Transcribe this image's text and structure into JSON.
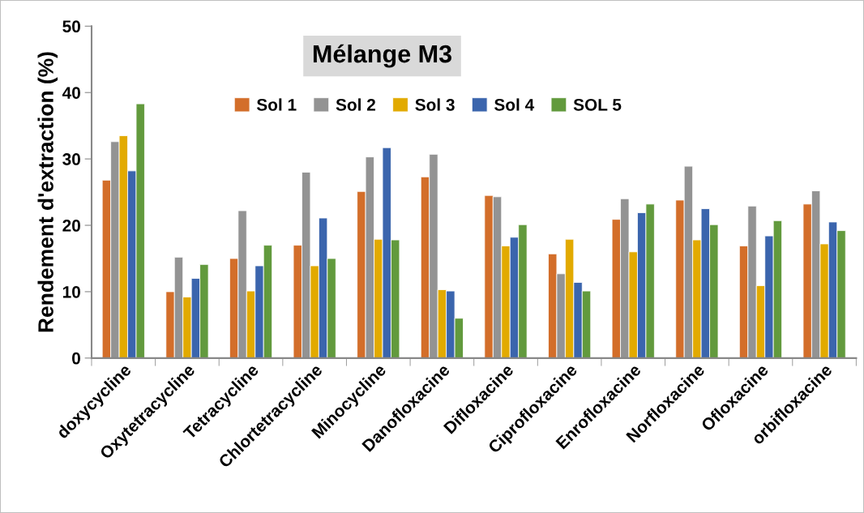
{
  "chart_data": {
    "type": "bar",
    "title": "Mélange M3",
    "ylabel": "Rendement d'extraction (%)",
    "categories": [
      "doxycycline",
      "Oxytetracycline",
      "Tetracycline",
      "Chlortetracycline",
      "Minocycline",
      "Danofloxacine",
      "Difloxacine",
      "Ciprofloxacine",
      "Enrofloxacine",
      "Norfloxacine",
      "Ofloxacine",
      "orbifloxacine"
    ],
    "series": [
      {
        "name": "Sol 1",
        "color": "#d36e2a",
        "values": [
          26.8,
          10.0,
          15.0,
          17.0,
          25.1,
          27.3,
          24.5,
          15.7,
          20.9,
          23.8,
          16.9,
          23.2
        ]
      },
      {
        "name": "Sol 2",
        "color": "#939393",
        "values": [
          32.6,
          15.2,
          22.2,
          28.0,
          30.3,
          30.7,
          24.3,
          12.7,
          24.0,
          28.9,
          22.9,
          25.2
        ]
      },
      {
        "name": "Sol 3",
        "color": "#e2aa00",
        "values": [
          33.5,
          9.2,
          10.1,
          13.9,
          17.9,
          10.3,
          16.9,
          17.9,
          16.0,
          17.8,
          10.9,
          17.2
        ]
      },
      {
        "name": "Sol 4",
        "color": "#3b65ad",
        "values": [
          28.2,
          12.0,
          13.9,
          21.1,
          31.7,
          10.1,
          18.2,
          11.4,
          21.9,
          22.5,
          18.4,
          20.5
        ]
      },
      {
        "name": "SOL 5",
        "color": "#629a3d",
        "values": [
          38.3,
          14.1,
          17.0,
          15.0,
          17.8,
          6.0,
          20.1,
          10.1,
          23.2,
          20.1,
          20.7,
          19.2
        ]
      }
    ],
    "ylim": [
      0,
      50
    ],
    "yticks": [
      0,
      10,
      20,
      30,
      40,
      50
    ],
    "grid": false,
    "legend": "top"
  }
}
